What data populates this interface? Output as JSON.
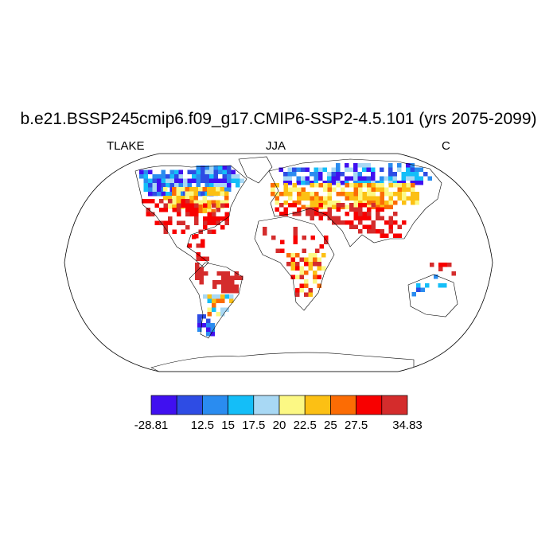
{
  "title": "b.e21.BSSP245cmip6.f09_g17.CMIP6-SSP2-4.5.101 (yrs 2075-2099)",
  "variable": "TLAKE",
  "season": "JJA",
  "units": "C",
  "projection": "Robinson",
  "colorbar": {
    "colors": [
      "#4010F0",
      "#2E4CE4",
      "#2A8CF0",
      "#14BEF8",
      "#A8D8F4",
      "#FCF884",
      "#FCC014",
      "#FC6C04",
      "#F80000",
      "#D42C2C"
    ],
    "labels": [
      "-28.81",
      "12.5",
      "15",
      "17.5",
      "20",
      "22.5",
      "25",
      "27.5",
      "34.83"
    ]
  }
}
